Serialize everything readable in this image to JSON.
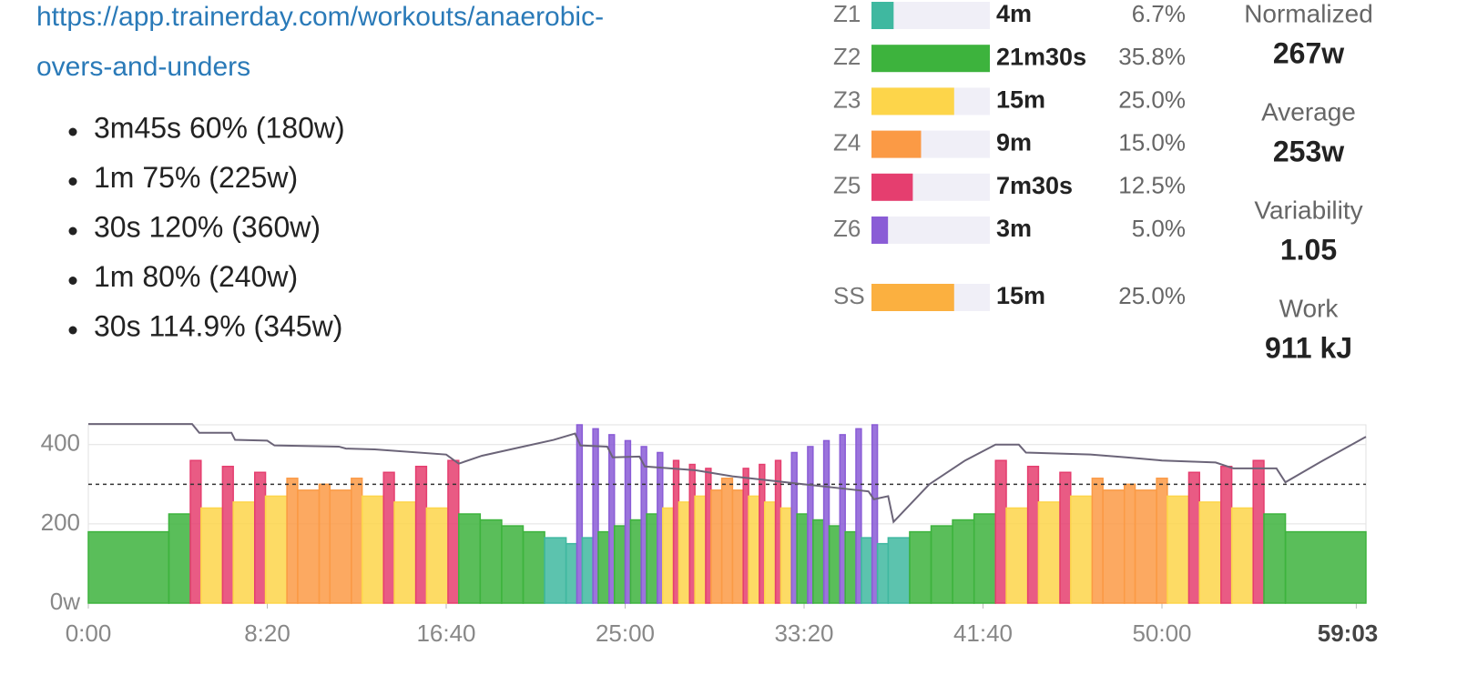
{
  "link": {
    "lines": [
      "https://app.trainerday.com/workouts/anaerobic-",
      "overs-and-unders"
    ]
  },
  "steps": [
    "3m45s 60% (180w)",
    "1m 75% (225w)",
    "30s 120% (360w)",
    "1m 80% (240w)",
    "30s 114.9% (345w)"
  ],
  "zones": [
    {
      "name": "Z1",
      "time": "4m",
      "percent": 6.7,
      "percent_label": "6.7%",
      "color": "#3fb8a0"
    },
    {
      "name": "Z2",
      "time": "21m30s",
      "percent": 35.8,
      "percent_label": "35.8%",
      "color": "#3db33d"
    },
    {
      "name": "Z3",
      "time": "15m",
      "percent": 25.0,
      "percent_label": "25.0%",
      "color": "#fdd54a"
    },
    {
      "name": "Z4",
      "time": "9m",
      "percent": 15.0,
      "percent_label": "15.0%",
      "color": "#fb9a45"
    },
    {
      "name": "Z5",
      "time": "7m30s",
      "percent": 12.5,
      "percent_label": "12.5%",
      "color": "#e53e6f"
    },
    {
      "name": "Z6",
      "time": "3m",
      "percent": 5.0,
      "percent_label": "5.0%",
      "color": "#8a5cd6"
    }
  ],
  "sweet_spot": {
    "name": "SS",
    "time": "15m",
    "percent": 25.0,
    "percent_label": "25.0%",
    "color": "#fbb040"
  },
  "stats": [
    {
      "label": "Normalized",
      "value": "267w"
    },
    {
      "label": "Average",
      "value": "253w"
    },
    {
      "label": "Variability",
      "value": "1.05"
    },
    {
      "label": "Work",
      "value": "911 kJ"
    }
  ],
  "chart_data": {
    "type": "bar",
    "durations": [
      225,
      60,
      30,
      60,
      30,
      60,
      30,
      60,
      30,
      60,
      30,
      60,
      30,
      60,
      30,
      60,
      30,
      60,
      30,
      60,
      60,
      60,
      60,
      60,
      30,
      15,
      30,
      15,
      30,
      15,
      30,
      15,
      30,
      15,
      30,
      15,
      30,
      15,
      30,
      15,
      30,
      15,
      30,
      30,
      30,
      15,
      30,
      15,
      30,
      15,
      30,
      15,
      30,
      15,
      30,
      15,
      30,
      15,
      30,
      15,
      30,
      15,
      30,
      60,
      60,
      60,
      60,
      60,
      30,
      60,
      30,
      60,
      30,
      60,
      30,
      60,
      30,
      60,
      30,
      60,
      30,
      60,
      30,
      60,
      30,
      60,
      225
    ],
    "values": [
      180,
      225,
      360,
      240,
      345,
      255,
      330,
      270,
      315,
      285,
      300,
      285,
      315,
      270,
      330,
      255,
      345,
      240,
      360,
      225,
      210,
      195,
      180,
      165,
      150,
      450,
      165,
      440,
      180,
      425,
      195,
      410,
      210,
      395,
      225,
      380,
      240,
      360,
      255,
      350,
      270,
      340,
      285,
      315,
      285,
      340,
      270,
      350,
      255,
      360,
      240,
      380,
      225,
      395,
      210,
      410,
      195,
      425,
      180,
      440,
      165,
      450,
      150,
      165,
      180,
      195,
      210,
      225,
      360,
      240,
      345,
      255,
      330,
      270,
      315,
      285,
      300,
      285,
      315,
      270,
      330,
      255,
      345,
      240,
      360,
      225,
      180
    ],
    "ftp": 300,
    "line": {
      "x": [
        0,
        290,
        310,
        400,
        410,
        500,
        520,
        700,
        720,
        800,
        1000,
        1035,
        1100,
        1200,
        1300,
        1360,
        1375,
        1450,
        1465,
        1540,
        1555,
        1700,
        1800,
        1900,
        2000,
        2100,
        2180,
        2195,
        2235,
        2250,
        2350,
        2450,
        2535,
        2600,
        2620,
        2800,
        2900,
        3000,
        3150,
        3200,
        3320,
        3345,
        3450,
        3570
      ],
      "values": [
        452,
        452,
        430,
        430,
        412,
        410,
        398,
        395,
        390,
        388,
        375,
        352,
        372,
        392,
        412,
        428,
        398,
        395,
        368,
        370,
        345,
        335,
        320,
        310,
        300,
        290,
        282,
        262,
        270,
        205,
        300,
        360,
        400,
        400,
        380,
        375,
        368,
        360,
        355,
        340,
        340,
        305,
        360,
        420
      ]
    },
    "xlim": [
      0,
      3570
    ],
    "ylim": [
      0,
      450
    ],
    "xticks": [
      {
        "value": 0,
        "label": "0:00"
      },
      {
        "value": 500,
        "label": "8:20"
      },
      {
        "value": 1000,
        "label": "16:40"
      },
      {
        "value": 1500,
        "label": "25:00"
      },
      {
        "value": 2000,
        "label": "33:20"
      },
      {
        "value": 2500,
        "label": "41:40"
      },
      {
        "value": 3000,
        "label": "50:00"
      },
      {
        "value": 3543,
        "label": "59:03"
      }
    ],
    "yticks": [
      {
        "value": 0,
        "label": "0w"
      },
      200,
      400
    ],
    "grid": true
  }
}
